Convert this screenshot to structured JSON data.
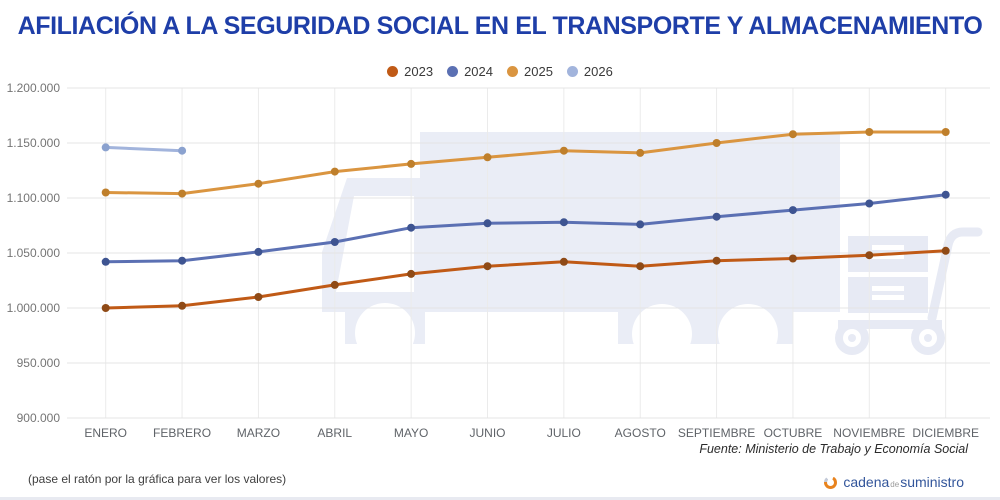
{
  "chart_data": {
    "type": "line",
    "title": "AFILIACIÓN A LA SEGURIDAD SOCIAL EN EL TRANSPORTE Y ALMACENAMIENTO",
    "xlabel": "",
    "ylabel": "",
    "categories": [
      "ENERO",
      "FEBRERO",
      "MARZO",
      "ABRIL",
      "MAYO",
      "JUNIO",
      "JULIO",
      "AGOSTO",
      "SEPTIEMBRE",
      "OCTUBRE",
      "NOVIEMBRE",
      "DICIEMBRE"
    ],
    "y_ticks": [
      "1.200.000",
      "1.150.000",
      "1.100.000",
      "1.050.000",
      "1.000.000",
      "950.000",
      "900.000"
    ],
    "ylim": [
      900000,
      1200000
    ],
    "grid": true,
    "legend_position": "top",
    "series": [
      {
        "name": "2023",
        "color": "#c05a16",
        "point_color": "#8f4a16",
        "values": [
          1000000,
          1002000,
          1010000,
          1021000,
          1031000,
          1038000,
          1042000,
          1038000,
          1043000,
          1045000,
          1048000,
          1052000
        ]
      },
      {
        "name": "2024",
        "color": "#5b70b3",
        "point_color": "#3e5491",
        "values": [
          1042000,
          1043000,
          1051000,
          1060000,
          1073000,
          1077000,
          1078000,
          1076000,
          1083000,
          1089000,
          1095000,
          1103000
        ]
      },
      {
        "name": "2025",
        "color": "#da9540",
        "point_color": "#bf7f2b",
        "values": [
          1105000,
          1104000,
          1113000,
          1124000,
          1131000,
          1137000,
          1143000,
          1141000,
          1150000,
          1158000,
          1160000,
          1160000
        ]
      },
      {
        "name": "2026",
        "color": "#a2b4dc",
        "point_color": "#8ba2cf",
        "values": [
          1146000,
          1143000
        ]
      }
    ],
    "source_note": "Fuente: Ministerio de Trabajo y Economía Social"
  },
  "footer": {
    "hint": "(pase el ratón por la gráfica para ver los valores)",
    "brand": {
      "part1": "cadena",
      "part2": "de",
      "part3": "suministro"
    }
  }
}
